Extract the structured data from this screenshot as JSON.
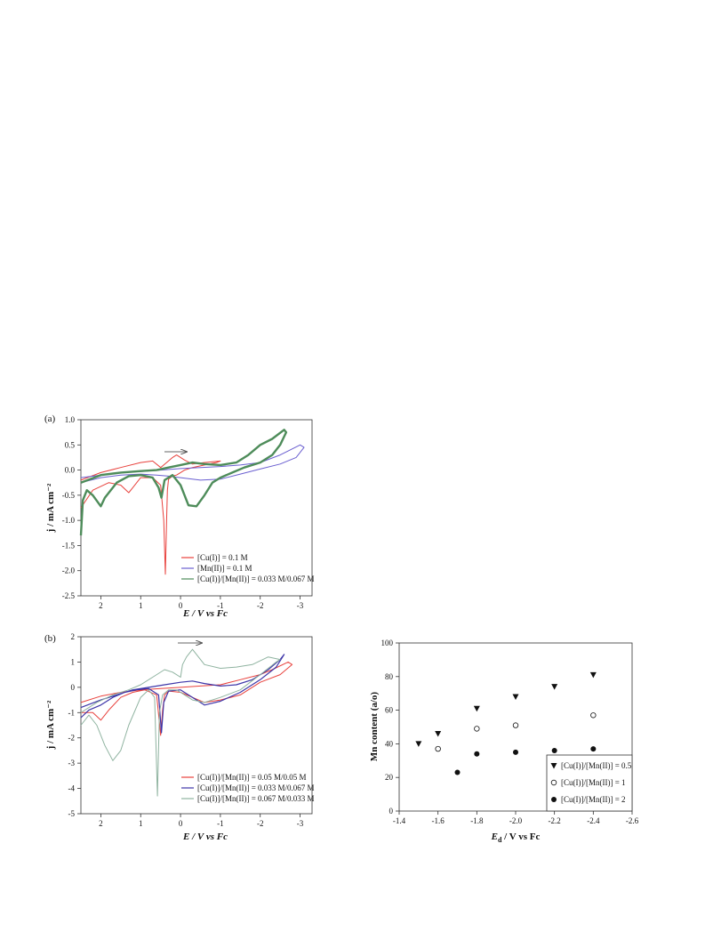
{
  "chart_data": [
    {
      "type": "line",
      "panel_label": "(a)",
      "xlabel": "E / V vs Fc",
      "ylabel": "j / mA cm⁻²",
      "xlim": [
        2.5,
        -3.3
      ],
      "ylim": [
        -2.5,
        1.0
      ],
      "x_ticks": [
        2,
        1,
        0,
        -1,
        -2,
        -3
      ],
      "x_tick_labels": [
        "2",
        "1",
        "0",
        "-1",
        "-2",
        "-3"
      ],
      "y_ticks": [
        -2.5,
        -2.0,
        -1.5,
        -1.0,
        -0.5,
        0.0,
        0.5,
        1.0
      ],
      "y_tick_labels": [
        "-2.5",
        "-2.0",
        "-1.5",
        "-1.0",
        "-0.5",
        "0.0",
        "0.5",
        "1.0"
      ],
      "series": [
        {
          "name": "[Cu(I)] = 0.1 M",
          "color": "#e8413c",
          "x": [
            2.5,
            2.2,
            1.8,
            1.5,
            1.3,
            1.2,
            1.0,
            0.7,
            0.5,
            0.42,
            0.38,
            0.35,
            0.33,
            0.3,
            0.2,
            0.1,
            0.0,
            -0.1,
            -0.3,
            -0.6,
            -0.9,
            -1.0,
            -0.6,
            -0.3,
            -0.1,
            0.1,
            0.2,
            0.35,
            0.5,
            0.7,
            1.0,
            1.5,
            2.0,
            2.5
          ],
          "y": [
            -0.75,
            -0.4,
            -0.25,
            -0.3,
            -0.45,
            -0.35,
            -0.15,
            -0.15,
            -0.3,
            -1.0,
            -2.07,
            -1.0,
            -0.4,
            -0.18,
            -0.12,
            -0.1,
            -0.05,
            0.0,
            0.05,
            0.1,
            0.15,
            0.18,
            0.15,
            0.12,
            0.2,
            0.3,
            0.25,
            0.15,
            0.05,
            0.18,
            0.15,
            0.05,
            -0.05,
            -0.2
          ]
        },
        {
          "name": "[Mn(II)] = 0.1 M",
          "color": "#6a5fd0",
          "x": [
            2.5,
            2.0,
            1.5,
            1.0,
            0.6,
            0.3,
            0.0,
            -0.5,
            -1.0,
            -1.5,
            -2.0,
            -2.5,
            -2.9,
            -3.1,
            -3.0,
            -2.5,
            -2.0,
            -1.5,
            -1.0,
            -0.5,
            0.0,
            0.5,
            1.0,
            1.5,
            2.0,
            2.5
          ],
          "y": [
            -0.25,
            -0.15,
            -0.1,
            -0.08,
            -0.1,
            -0.12,
            -0.15,
            -0.2,
            -0.18,
            -0.08,
            0.02,
            0.12,
            0.25,
            0.45,
            0.5,
            0.3,
            0.15,
            0.1,
            0.07,
            0.05,
            0.03,
            0.0,
            -0.03,
            -0.05,
            -0.1,
            -0.15
          ]
        },
        {
          "name": "[Cu(I)]/[Mn(II)] = 0.033 M/0.067 M",
          "color": "#4e8c5a",
          "x": [
            2.5,
            2.45,
            2.35,
            2.2,
            2.0,
            1.9,
            1.6,
            1.3,
            1.0,
            0.7,
            0.55,
            0.48,
            0.4,
            0.2,
            0.0,
            -0.2,
            -0.4,
            -0.6,
            -0.8,
            -1.0,
            -1.3,
            -1.6,
            -2.0,
            -2.3,
            -2.5,
            -2.65,
            -2.6,
            -2.3,
            -2.0,
            -1.7,
            -1.4,
            -1.0,
            -0.6,
            -0.3,
            0.0,
            0.3,
            0.6,
            1.0,
            1.5,
            2.0,
            2.5
          ],
          "y": [
            -1.3,
            -0.6,
            -0.4,
            -0.5,
            -0.72,
            -0.55,
            -0.25,
            -0.12,
            -0.1,
            -0.15,
            -0.35,
            -0.55,
            -0.2,
            -0.1,
            -0.3,
            -0.7,
            -0.72,
            -0.5,
            -0.25,
            -0.15,
            -0.05,
            0.05,
            0.15,
            0.3,
            0.5,
            0.75,
            0.8,
            0.62,
            0.5,
            0.3,
            0.15,
            0.1,
            0.12,
            0.15,
            0.1,
            0.05,
            0.0,
            -0.02,
            -0.05,
            -0.1,
            -0.25
          ]
        }
      ],
      "annotations": [
        "arrow pointing to negative potential near 0.1 V, j = 0.35"
      ]
    },
    {
      "type": "line",
      "panel_label": "(b)",
      "xlabel": "E / V vs Fc",
      "ylabel": "j / mA cm⁻²",
      "xlim": [
        2.5,
        -3.3
      ],
      "ylim": [
        -5,
        2
      ],
      "x_ticks": [
        2,
        1,
        0,
        -1,
        -2,
        -3
      ],
      "x_tick_labels": [
        "2",
        "1",
        "0",
        "-1",
        "-2",
        "-3"
      ],
      "y_ticks": [
        -5,
        -4,
        -3,
        -2,
        -1,
        0,
        1,
        2
      ],
      "y_tick_labels": [
        "-5",
        "-4",
        "-3",
        "-2",
        "-1",
        "0",
        "1",
        "2"
      ],
      "series": [
        {
          "name": "[Cu(I)]/[Mn(II)] = 0.05 M/0.05 M",
          "color": "#e8413c",
          "x": [
            2.5,
            2.2,
            2.0,
            1.8,
            1.5,
            1.2,
            0.9,
            0.6,
            0.5,
            0.45,
            0.4,
            0.3,
            0.0,
            -0.3,
            -0.6,
            -1.0,
            -1.5,
            -2.0,
            -2.5,
            -2.8,
            -2.7,
            -2.3,
            -2.0,
            -1.5,
            -1.0,
            -0.5,
            0.0,
            0.5,
            1.0,
            1.5,
            2.0,
            2.5
          ],
          "y": [
            -1.0,
            -1.0,
            -1.3,
            -0.9,
            -0.4,
            -0.2,
            -0.1,
            -0.3,
            -1.9,
            -0.9,
            -0.3,
            -0.15,
            -0.2,
            -0.4,
            -0.6,
            -0.5,
            -0.3,
            0.2,
            0.5,
            0.9,
            1.0,
            0.7,
            0.5,
            0.3,
            0.1,
            0.05,
            0.0,
            -0.05,
            -0.1,
            -0.2,
            -0.35,
            -0.6
          ]
        },
        {
          "name": "[Cu(I)]/[Mn(II)] = 0.033 M/0.067 M",
          "color": "#3d35a8",
          "x": [
            2.5,
            2.3,
            2.0,
            1.7,
            1.4,
            1.1,
            0.8,
            0.55,
            0.48,
            0.42,
            0.3,
            0.0,
            -0.3,
            -0.6,
            -1.0,
            -1.5,
            -2.0,
            -2.4,
            -2.6,
            -2.5,
            -2.2,
            -1.8,
            -1.4,
            -1.0,
            -0.6,
            -0.3,
            0.0,
            0.4,
            0.8,
            1.2,
            1.6,
            2.0,
            2.5
          ],
          "y": [
            -1.2,
            -0.9,
            -0.7,
            -0.4,
            -0.2,
            -0.1,
            -0.05,
            -0.3,
            -1.8,
            -0.6,
            -0.15,
            -0.1,
            -0.4,
            -0.7,
            -0.55,
            -0.2,
            0.3,
            0.8,
            1.3,
            1.1,
            0.7,
            0.3,
            0.1,
            0.05,
            0.15,
            0.25,
            0.2,
            0.1,
            0.0,
            -0.1,
            -0.3,
            -0.5,
            -0.8
          ]
        },
        {
          "name": "[Cu(I)]/[Mn(II)] = 0.067 M/0.033 M",
          "color": "#8fb3a0",
          "x": [
            2.5,
            2.3,
            2.1,
            1.9,
            1.7,
            1.5,
            1.3,
            1.0,
            0.8,
            0.65,
            0.58,
            0.53,
            0.45,
            0.3,
            0.1,
            -0.1,
            -0.3,
            -0.6,
            -1.0,
            -1.5,
            -2.0,
            -2.4,
            -2.5,
            -2.2,
            -1.8,
            -1.4,
            -1.0,
            -0.6,
            -0.3,
            -0.15,
            -0.05,
            0.0,
            0.2,
            0.4,
            0.7,
            1.0,
            1.3,
            1.7,
            2.1,
            2.5
          ],
          "y": [
            -1.5,
            -1.1,
            -1.5,
            -2.3,
            -2.9,
            -2.5,
            -1.5,
            -0.4,
            -0.1,
            -0.4,
            -4.3,
            -1.0,
            -0.3,
            -0.1,
            -0.1,
            -0.3,
            -0.5,
            -0.6,
            -0.4,
            -0.1,
            0.5,
            1.0,
            1.1,
            1.2,
            0.9,
            0.8,
            0.75,
            0.9,
            1.5,
            1.2,
            0.9,
            0.4,
            0.6,
            0.7,
            0.4,
            0.1,
            -0.1,
            -0.3,
            -0.6,
            -1.0
          ]
        }
      ],
      "annotations": [
        "arrow pointing to negative potential near 0.0 V, j = 1.7"
      ]
    },
    {
      "type": "scatter",
      "xlabel": "E",
      "xlabel_subscript": "d",
      "xlabel_suffix": " / V vs Fc",
      "ylabel": "Mn content (a/o)",
      "xlim": [
        -1.4,
        -2.6
      ],
      "ylim": [
        0,
        100
      ],
      "x_ticks": [
        -1.4,
        -1.6,
        -1.8,
        -2.0,
        -2.2,
        -2.4,
        -2.6
      ],
      "x_tick_labels": [
        "-1.4",
        "-1.6",
        "-1.8",
        "-2.0",
        "-2.2",
        "-2.4",
        "-2.6"
      ],
      "y_ticks": [
        0,
        20,
        40,
        60,
        80,
        100
      ],
      "y_tick_labels": [
        "0",
        "20",
        "40",
        "60",
        "80",
        "100"
      ],
      "legend_position": "bottom-right",
      "series": [
        {
          "name": "[Cu(I)]/[Mn(II)] = 0.5",
          "marker": "triangle-down-filled",
          "x": [
            -1.5,
            -1.6,
            -1.8,
            -2.0,
            -2.2,
            -2.4
          ],
          "y": [
            40,
            46,
            61,
            68,
            74,
            81
          ]
        },
        {
          "name": "[Cu(I)]/[Mn(II)] = 1",
          "marker": "circle-open",
          "x": [
            -1.6,
            -1.8,
            -2.0,
            -2.4
          ],
          "y": [
            37,
            49,
            51,
            57
          ]
        },
        {
          "name": "[Cu(I)]/[Mn(II)] = 2",
          "marker": "circle-filled",
          "x": [
            -1.7,
            -1.8,
            -2.0,
            -2.2,
            -2.4
          ],
          "y": [
            23,
            34,
            35,
            36,
            37
          ]
        }
      ]
    }
  ]
}
